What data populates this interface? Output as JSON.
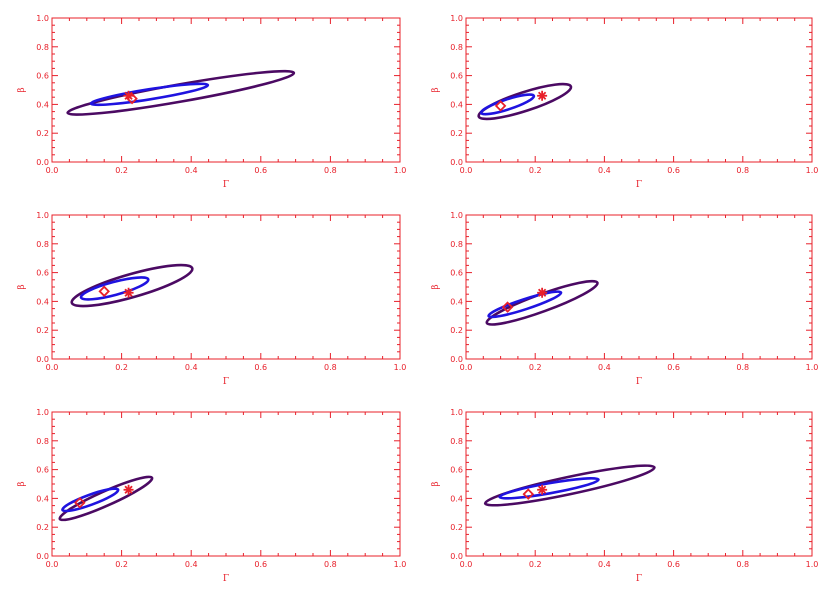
{
  "colors": {
    "axis": "#e8202a",
    "outer_contour": "#4b0a63",
    "inner_contour": "#1f13e0",
    "marker": "#e8202a"
  },
  "chart_data": [
    {
      "type": "scatter",
      "xlabel": "Γ",
      "ylabel": "β",
      "xlim": [
        0,
        1
      ],
      "ylim": [
        0,
        1
      ],
      "xticks": [
        "0.0",
        "0.2",
        "0.4",
        "0.6",
        "0.8",
        "1.0"
      ],
      "yticks": [
        "0.0",
        "0.2",
        "0.4",
        "0.6",
        "0.8",
        "1.0"
      ],
      "true_value": {
        "x": 0.22,
        "y": 0.46
      },
      "estimate": {
        "x": 0.23,
        "y": 0.44
      },
      "contours": [
        {
          "level": "outer",
          "cx": 0.37,
          "cy": 0.48,
          "rx": 0.33,
          "ry": 0.06,
          "angle_deg": -10
        },
        {
          "level": "inner",
          "cx": 0.28,
          "cy": 0.47,
          "rx": 0.17,
          "ry": 0.035,
          "angle_deg": -9
        }
      ]
    },
    {
      "type": "scatter",
      "xlabel": "Γ",
      "ylabel": "β",
      "xlim": [
        0,
        1
      ],
      "ylim": [
        0,
        1
      ],
      "xticks": [
        "0.0",
        "0.2",
        "0.4",
        "0.6",
        "0.8",
        "1.0"
      ],
      "yticks": [
        "0.0",
        "0.2",
        "0.4",
        "0.6",
        "0.8",
        "1.0"
      ],
      "true_value": {
        "x": 0.22,
        "y": 0.46
      },
      "estimate": {
        "x": 0.1,
        "y": 0.39
      },
      "contours": [
        {
          "level": "outer",
          "cx": 0.17,
          "cy": 0.42,
          "rx": 0.14,
          "ry": 0.065,
          "angle_deg": -18
        },
        {
          "level": "inner",
          "cx": 0.12,
          "cy": 0.4,
          "rx": 0.08,
          "ry": 0.035,
          "angle_deg": -18
        }
      ]
    },
    {
      "type": "scatter",
      "xlabel": "Γ",
      "ylabel": "β",
      "xlim": [
        0,
        1
      ],
      "ylim": [
        0,
        1
      ],
      "xticks": [
        "0.0",
        "0.2",
        "0.4",
        "0.6",
        "0.8",
        "1.0"
      ],
      "yticks": [
        "0.0",
        "0.2",
        "0.4",
        "0.6",
        "0.8",
        "1.0"
      ],
      "true_value": {
        "x": 0.22,
        "y": 0.46
      },
      "estimate": {
        "x": 0.15,
        "y": 0.47
      },
      "contours": [
        {
          "level": "outer",
          "cx": 0.23,
          "cy": 0.51,
          "rx": 0.18,
          "ry": 0.08,
          "angle_deg": -16
        },
        {
          "level": "inner",
          "cx": 0.18,
          "cy": 0.49,
          "rx": 0.1,
          "ry": 0.045,
          "angle_deg": -15
        }
      ]
    },
    {
      "type": "scatter",
      "xlabel": "Γ",
      "ylabel": "β",
      "xlim": [
        0,
        1
      ],
      "ylim": [
        0,
        1
      ],
      "xticks": [
        "0.0",
        "0.2",
        "0.4",
        "0.6",
        "0.8",
        "1.0"
      ],
      "yticks": [
        "0.0",
        "0.2",
        "0.4",
        "0.6",
        "0.8",
        "1.0"
      ],
      "true_value": {
        "x": 0.22,
        "y": 0.46
      },
      "estimate": {
        "x": 0.12,
        "y": 0.36
      },
      "contours": [
        {
          "level": "outer",
          "cx": 0.22,
          "cy": 0.39,
          "rx": 0.17,
          "ry": 0.06,
          "angle_deg": -20
        },
        {
          "level": "inner",
          "cx": 0.17,
          "cy": 0.38,
          "rx": 0.11,
          "ry": 0.035,
          "angle_deg": -18
        }
      ]
    },
    {
      "type": "scatter",
      "xlabel": "Γ",
      "ylabel": "β",
      "xlim": [
        0,
        1
      ],
      "ylim": [
        0,
        1
      ],
      "xticks": [
        "0.0",
        "0.2",
        "0.4",
        "0.6",
        "0.8",
        "1.0"
      ],
      "yticks": [
        "0.0",
        "0.2",
        "0.4",
        "0.6",
        "0.8",
        "1.0"
      ],
      "true_value": {
        "x": 0.22,
        "y": 0.46
      },
      "estimate": {
        "x": 0.08,
        "y": 0.37
      },
      "contours": [
        {
          "level": "outer",
          "cx": 0.155,
          "cy": 0.4,
          "rx": 0.145,
          "ry": 0.05,
          "angle_deg": -24
        },
        {
          "level": "inner",
          "cx": 0.11,
          "cy": 0.39,
          "rx": 0.085,
          "ry": 0.035,
          "angle_deg": -20
        }
      ]
    },
    {
      "type": "scatter",
      "xlabel": "Γ",
      "ylabel": "β",
      "xlim": [
        0,
        1
      ],
      "ylim": [
        0,
        1
      ],
      "xticks": [
        "0.0",
        "0.2",
        "0.4",
        "0.6",
        "0.8",
        "1.0"
      ],
      "yticks": [
        "0.0",
        "0.2",
        "0.4",
        "0.6",
        "0.8",
        "1.0"
      ],
      "true_value": {
        "x": 0.22,
        "y": 0.46
      },
      "estimate": {
        "x": 0.18,
        "y": 0.43
      },
      "contours": [
        {
          "level": "outer",
          "cx": 0.3,
          "cy": 0.49,
          "rx": 0.25,
          "ry": 0.06,
          "angle_deg": -12
        },
        {
          "level": "inner",
          "cx": 0.24,
          "cy": 0.47,
          "rx": 0.145,
          "ry": 0.035,
          "angle_deg": -10
        }
      ]
    }
  ]
}
